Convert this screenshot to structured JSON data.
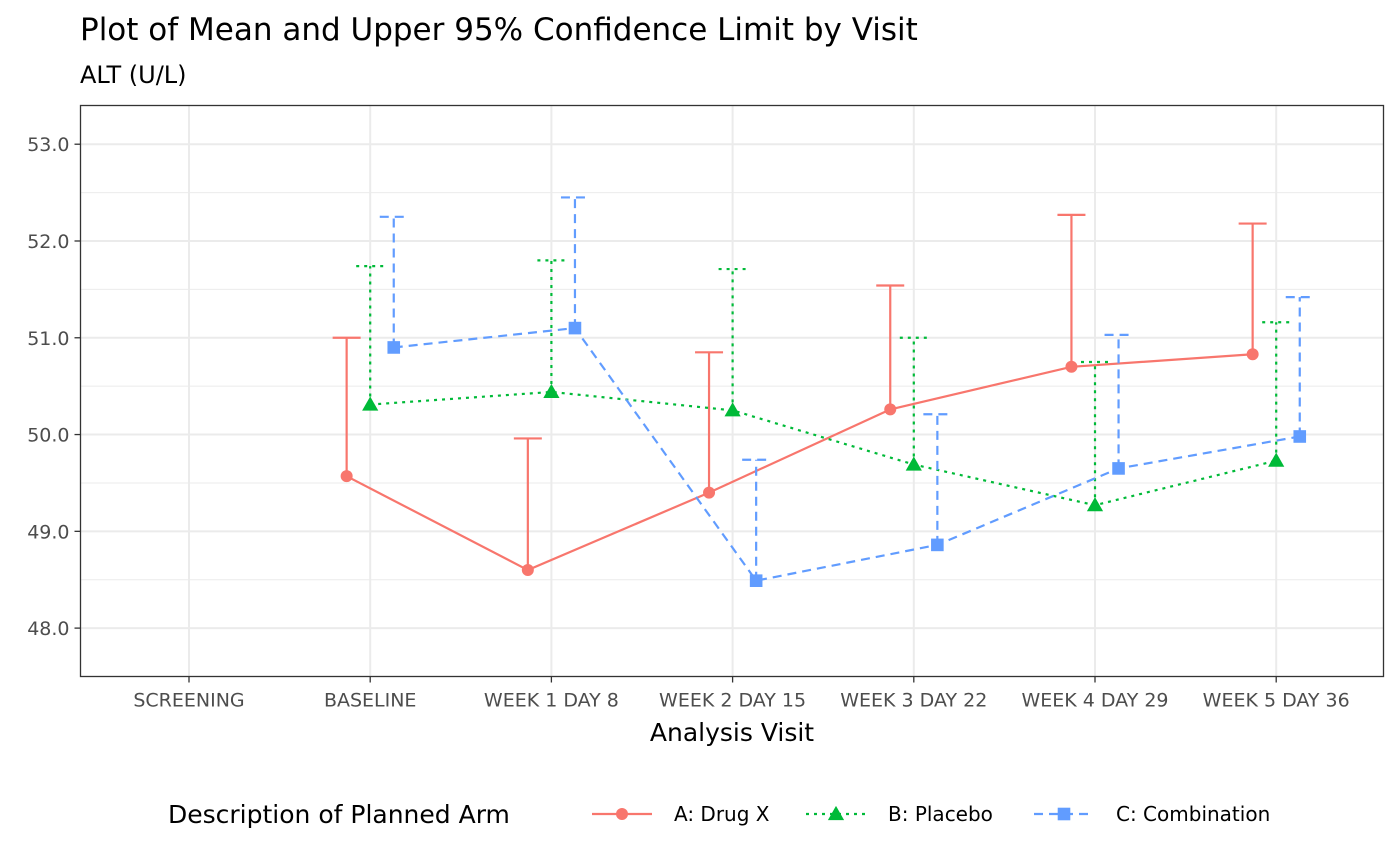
{
  "chart_data": {
    "type": "line",
    "title": "Plot of Mean and Upper 95% Confidence Limit by Visit",
    "subtitle": "ALT (U/L)",
    "xlabel": "Analysis Visit",
    "ylabel": "",
    "categories": [
      "SCREENING",
      "BASELINE",
      "WEEK 1 DAY 8",
      "WEEK 2 DAY 15",
      "WEEK 3 DAY 22",
      "WEEK 4 DAY 29",
      "WEEK 5 DAY 36"
    ],
    "ylim": [
      47.5,
      53.4
    ],
    "yticks": [
      48.0,
      49.0,
      50.0,
      51.0,
      52.0,
      53.0
    ],
    "ytick_labels": [
      "48.0",
      "49.0",
      "50.0",
      "51.0",
      "52.0",
      "53.0"
    ],
    "grid": true,
    "legend": {
      "title": "Description of Planned Arm",
      "position": "bottom"
    },
    "series": [
      {
        "name": "A: Drug X",
        "color": "#F8766D",
        "marker": "circle",
        "linestyle": "solid",
        "offset": -0.13,
        "mean": [
          null,
          49.57,
          48.6,
          49.4,
          50.26,
          50.7,
          50.83
        ],
        "upper_ci": [
          null,
          51.0,
          49.96,
          50.85,
          51.54,
          52.27,
          52.18
        ]
      },
      {
        "name": "B: Placebo",
        "color": "#00BA38",
        "marker": "triangle",
        "linestyle": "dotted",
        "offset": 0.0,
        "mean": [
          null,
          50.31,
          50.44,
          50.25,
          49.69,
          49.27,
          49.73
        ],
        "upper_ci": [
          null,
          51.74,
          51.8,
          51.71,
          51.0,
          50.75,
          51.16
        ]
      },
      {
        "name": "C: Combination",
        "color": "#619CFF",
        "marker": "square",
        "linestyle": "dashed",
        "offset": 0.13,
        "mean": [
          null,
          50.9,
          51.1,
          48.49,
          48.86,
          49.65,
          49.98
        ],
        "upper_ci": [
          null,
          52.25,
          52.45,
          49.74,
          50.21,
          51.03,
          51.42
        ]
      }
    ]
  }
}
